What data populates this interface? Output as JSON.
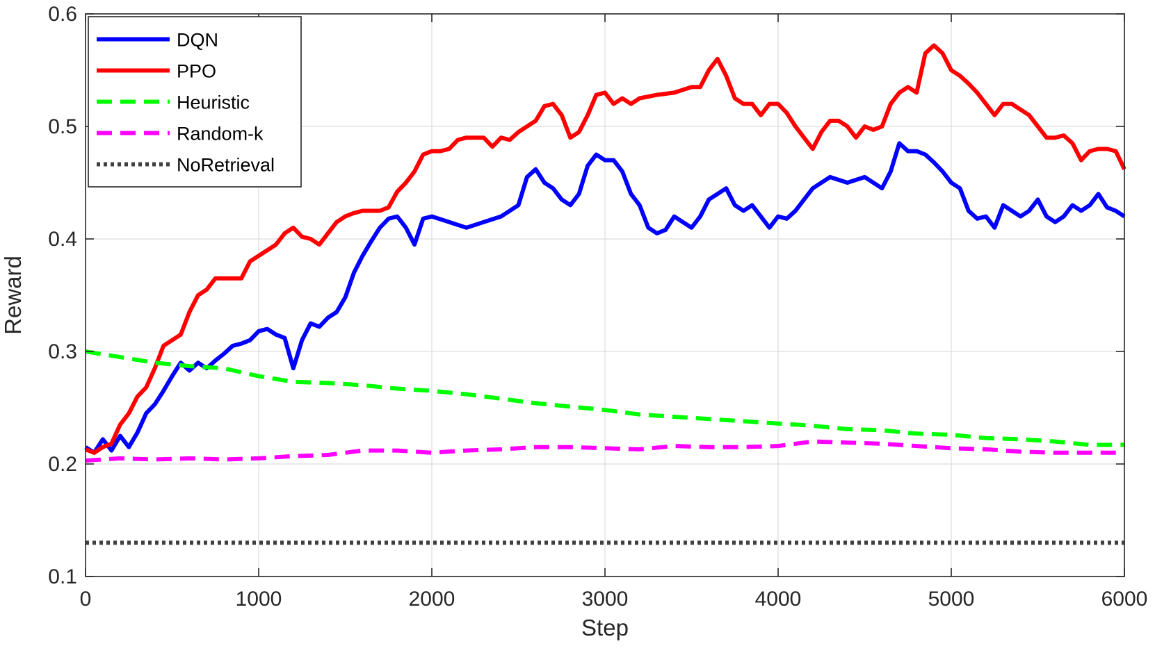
{
  "chart_data": {
    "type": "line",
    "title": "",
    "xlabel": "Step",
    "ylabel": "Reward",
    "xlim": [
      0,
      6000
    ],
    "ylim": [
      0.1,
      0.6
    ],
    "xticks": [
      0,
      1000,
      2000,
      3000,
      4000,
      5000,
      6000
    ],
    "yticks": [
      0.1,
      0.2,
      0.3,
      0.4,
      0.5,
      0.6
    ],
    "xtick_labels": [
      "0",
      "1000",
      "2000",
      "3000",
      "4000",
      "5000",
      "6000"
    ],
    "ytick_labels": [
      "0.1",
      "0.2",
      "0.3",
      "0.4",
      "0.5",
      "0.6"
    ],
    "grid": true,
    "legend_position": "top-left",
    "series": [
      {
        "name": "DQN",
        "color": "#0000ff",
        "style": "solid",
        "points": [
          [
            0,
            0.215
          ],
          [
            50,
            0.21
          ],
          [
            100,
            0.222
          ],
          [
            150,
            0.212
          ],
          [
            200,
            0.225
          ],
          [
            250,
            0.215
          ],
          [
            300,
            0.228
          ],
          [
            350,
            0.245
          ],
          [
            400,
            0.253
          ],
          [
            450,
            0.265
          ],
          [
            500,
            0.278
          ],
          [
            550,
            0.29
          ],
          [
            600,
            0.283
          ],
          [
            650,
            0.29
          ],
          [
            700,
            0.285
          ],
          [
            750,
            0.292
          ],
          [
            800,
            0.298
          ],
          [
            850,
            0.305
          ],
          [
            900,
            0.307
          ],
          [
            950,
            0.31
          ],
          [
            1000,
            0.318
          ],
          [
            1050,
            0.32
          ],
          [
            1100,
            0.315
          ],
          [
            1150,
            0.312
          ],
          [
            1200,
            0.285
          ],
          [
            1250,
            0.31
          ],
          [
            1300,
            0.325
          ],
          [
            1350,
            0.322
          ],
          [
            1400,
            0.33
          ],
          [
            1450,
            0.335
          ],
          [
            1500,
            0.348
          ],
          [
            1550,
            0.37
          ],
          [
            1600,
            0.385
          ],
          [
            1650,
            0.398
          ],
          [
            1700,
            0.41
          ],
          [
            1750,
            0.418
          ],
          [
            1800,
            0.42
          ],
          [
            1850,
            0.41
          ],
          [
            1900,
            0.395
          ],
          [
            1950,
            0.418
          ],
          [
            2000,
            0.42
          ],
          [
            2100,
            0.415
          ],
          [
            2200,
            0.41
          ],
          [
            2300,
            0.415
          ],
          [
            2400,
            0.42
          ],
          [
            2500,
            0.43
          ],
          [
            2550,
            0.455
          ],
          [
            2600,
            0.462
          ],
          [
            2650,
            0.45
          ],
          [
            2700,
            0.445
          ],
          [
            2750,
            0.435
          ],
          [
            2800,
            0.43
          ],
          [
            2850,
            0.44
          ],
          [
            2900,
            0.465
          ],
          [
            2950,
            0.475
          ],
          [
            3000,
            0.47
          ],
          [
            3050,
            0.47
          ],
          [
            3100,
            0.46
          ],
          [
            3150,
            0.44
          ],
          [
            3200,
            0.43
          ],
          [
            3250,
            0.41
          ],
          [
            3300,
            0.405
          ],
          [
            3350,
            0.408
          ],
          [
            3400,
            0.42
          ],
          [
            3450,
            0.415
          ],
          [
            3500,
            0.41
          ],
          [
            3550,
            0.42
          ],
          [
            3600,
            0.435
          ],
          [
            3650,
            0.44
          ],
          [
            3700,
            0.445
          ],
          [
            3750,
            0.43
          ],
          [
            3800,
            0.425
          ],
          [
            3850,
            0.43
          ],
          [
            3900,
            0.42
          ],
          [
            3950,
            0.41
          ],
          [
            4000,
            0.42
          ],
          [
            4050,
            0.418
          ],
          [
            4100,
            0.425
          ],
          [
            4150,
            0.435
          ],
          [
            4200,
            0.445
          ],
          [
            4300,
            0.455
          ],
          [
            4400,
            0.45
          ],
          [
            4500,
            0.455
          ],
          [
            4600,
            0.445
          ],
          [
            4650,
            0.46
          ],
          [
            4700,
            0.485
          ],
          [
            4750,
            0.478
          ],
          [
            4800,
            0.478
          ],
          [
            4850,
            0.475
          ],
          [
            4900,
            0.468
          ],
          [
            4950,
            0.46
          ],
          [
            5000,
            0.45
          ],
          [
            5050,
            0.445
          ],
          [
            5100,
            0.425
          ],
          [
            5150,
            0.418
          ],
          [
            5200,
            0.42
          ],
          [
            5250,
            0.41
          ],
          [
            5300,
            0.43
          ],
          [
            5350,
            0.425
          ],
          [
            5400,
            0.42
          ],
          [
            5450,
            0.425
          ],
          [
            5500,
            0.435
          ],
          [
            5550,
            0.42
          ],
          [
            5600,
            0.415
          ],
          [
            5650,
            0.42
          ],
          [
            5700,
            0.43
          ],
          [
            5750,
            0.425
          ],
          [
            5800,
            0.43
          ],
          [
            5850,
            0.44
          ],
          [
            5900,
            0.428
          ],
          [
            5950,
            0.425
          ],
          [
            6000,
            0.42
          ]
        ]
      },
      {
        "name": "PPO",
        "color": "#ff0000",
        "style": "solid",
        "points": [
          [
            0,
            0.213
          ],
          [
            50,
            0.21
          ],
          [
            100,
            0.215
          ],
          [
            150,
            0.218
          ],
          [
            200,
            0.235
          ],
          [
            250,
            0.245
          ],
          [
            300,
            0.26
          ],
          [
            350,
            0.268
          ],
          [
            400,
            0.285
          ],
          [
            450,
            0.305
          ],
          [
            500,
            0.31
          ],
          [
            550,
            0.315
          ],
          [
            600,
            0.335
          ],
          [
            650,
            0.35
          ],
          [
            700,
            0.355
          ],
          [
            750,
            0.365
          ],
          [
            800,
            0.365
          ],
          [
            850,
            0.365
          ],
          [
            900,
            0.365
          ],
          [
            950,
            0.38
          ],
          [
            1000,
            0.385
          ],
          [
            1050,
            0.39
          ],
          [
            1100,
            0.395
          ],
          [
            1150,
            0.405
          ],
          [
            1200,
            0.41
          ],
          [
            1250,
            0.402
          ],
          [
            1300,
            0.4
          ],
          [
            1350,
            0.395
          ],
          [
            1400,
            0.405
          ],
          [
            1450,
            0.415
          ],
          [
            1500,
            0.42
          ],
          [
            1550,
            0.423
          ],
          [
            1600,
            0.425
          ],
          [
            1650,
            0.425
          ],
          [
            1700,
            0.425
          ],
          [
            1750,
            0.428
          ],
          [
            1800,
            0.442
          ],
          [
            1850,
            0.45
          ],
          [
            1900,
            0.46
          ],
          [
            1950,
            0.475
          ],
          [
            2000,
            0.478
          ],
          [
            2050,
            0.478
          ],
          [
            2100,
            0.48
          ],
          [
            2150,
            0.488
          ],
          [
            2200,
            0.49
          ],
          [
            2300,
            0.49
          ],
          [
            2350,
            0.482
          ],
          [
            2400,
            0.49
          ],
          [
            2450,
            0.488
          ],
          [
            2500,
            0.495
          ],
          [
            2550,
            0.5
          ],
          [
            2600,
            0.505
          ],
          [
            2650,
            0.518
          ],
          [
            2700,
            0.52
          ],
          [
            2750,
            0.51
          ],
          [
            2800,
            0.49
          ],
          [
            2850,
            0.495
          ],
          [
            2900,
            0.51
          ],
          [
            2950,
            0.528
          ],
          [
            3000,
            0.53
          ],
          [
            3050,
            0.52
          ],
          [
            3100,
            0.525
          ],
          [
            3150,
            0.52
          ],
          [
            3200,
            0.525
          ],
          [
            3300,
            0.528
          ],
          [
            3400,
            0.53
          ],
          [
            3500,
            0.535
          ],
          [
            3550,
            0.535
          ],
          [
            3600,
            0.55
          ],
          [
            3650,
            0.56
          ],
          [
            3700,
            0.545
          ],
          [
            3750,
            0.525
          ],
          [
            3800,
            0.52
          ],
          [
            3850,
            0.52
          ],
          [
            3900,
            0.51
          ],
          [
            3950,
            0.52
          ],
          [
            4000,
            0.52
          ],
          [
            4050,
            0.512
          ],
          [
            4100,
            0.5
          ],
          [
            4150,
            0.49
          ],
          [
            4200,
            0.48
          ],
          [
            4250,
            0.495
          ],
          [
            4300,
            0.505
          ],
          [
            4350,
            0.505
          ],
          [
            4400,
            0.5
          ],
          [
            4450,
            0.49
          ],
          [
            4500,
            0.5
          ],
          [
            4550,
            0.497
          ],
          [
            4600,
            0.5
          ],
          [
            4650,
            0.52
          ],
          [
            4700,
            0.53
          ],
          [
            4750,
            0.535
          ],
          [
            4800,
            0.53
          ],
          [
            4850,
            0.565
          ],
          [
            4900,
            0.572
          ],
          [
            4950,
            0.565
          ],
          [
            5000,
            0.55
          ],
          [
            5050,
            0.545
          ],
          [
            5100,
            0.538
          ],
          [
            5150,
            0.53
          ],
          [
            5200,
            0.52
          ],
          [
            5250,
            0.51
          ],
          [
            5300,
            0.52
          ],
          [
            5350,
            0.52
          ],
          [
            5400,
            0.515
          ],
          [
            5450,
            0.51
          ],
          [
            5500,
            0.5
          ],
          [
            5550,
            0.49
          ],
          [
            5600,
            0.49
          ],
          [
            5650,
            0.492
          ],
          [
            5700,
            0.485
          ],
          [
            5750,
            0.47
          ],
          [
            5800,
            0.478
          ],
          [
            5850,
            0.48
          ],
          [
            5900,
            0.48
          ],
          [
            5950,
            0.478
          ],
          [
            6000,
            0.462
          ]
        ]
      },
      {
        "name": "Heuristic",
        "color": "#00ff00",
        "style": "dashed",
        "points": [
          [
            0,
            0.3
          ],
          [
            200,
            0.295
          ],
          [
            400,
            0.29
          ],
          [
            600,
            0.287
          ],
          [
            800,
            0.285
          ],
          [
            1000,
            0.278
          ],
          [
            1200,
            0.273
          ],
          [
            1400,
            0.272
          ],
          [
            1600,
            0.27
          ],
          [
            1800,
            0.267
          ],
          [
            2000,
            0.265
          ],
          [
            2200,
            0.262
          ],
          [
            2400,
            0.258
          ],
          [
            2600,
            0.254
          ],
          [
            2800,
            0.251
          ],
          [
            3000,
            0.248
          ],
          [
            3200,
            0.244
          ],
          [
            3400,
            0.242
          ],
          [
            3600,
            0.24
          ],
          [
            3800,
            0.238
          ],
          [
            4000,
            0.236
          ],
          [
            4200,
            0.234
          ],
          [
            4400,
            0.231
          ],
          [
            4600,
            0.23
          ],
          [
            4800,
            0.227
          ],
          [
            5000,
            0.226
          ],
          [
            5200,
            0.223
          ],
          [
            5400,
            0.222
          ],
          [
            5600,
            0.22
          ],
          [
            5800,
            0.217
          ],
          [
            6000,
            0.217
          ]
        ]
      },
      {
        "name": "Random-k",
        "color": "#ff00ff",
        "style": "dashed",
        "points": [
          [
            0,
            0.203
          ],
          [
            200,
            0.205
          ],
          [
            400,
            0.204
          ],
          [
            600,
            0.205
          ],
          [
            800,
            0.204
          ],
          [
            1000,
            0.205
          ],
          [
            1200,
            0.207
          ],
          [
            1400,
            0.208
          ],
          [
            1600,
            0.212
          ],
          [
            1800,
            0.212
          ],
          [
            2000,
            0.21
          ],
          [
            2200,
            0.212
          ],
          [
            2400,
            0.213
          ],
          [
            2600,
            0.215
          ],
          [
            2800,
            0.215
          ],
          [
            3000,
            0.214
          ],
          [
            3200,
            0.213
          ],
          [
            3400,
            0.216
          ],
          [
            3600,
            0.215
          ],
          [
            3800,
            0.215
          ],
          [
            4000,
            0.216
          ],
          [
            4200,
            0.22
          ],
          [
            4400,
            0.219
          ],
          [
            4600,
            0.218
          ],
          [
            4800,
            0.216
          ],
          [
            5000,
            0.214
          ],
          [
            5200,
            0.213
          ],
          [
            5400,
            0.211
          ],
          [
            5600,
            0.21
          ],
          [
            5800,
            0.21
          ],
          [
            6000,
            0.21
          ]
        ]
      },
      {
        "name": "NoRetrieval",
        "color": "#404040",
        "style": "dotted",
        "points": [
          [
            0,
            0.13
          ],
          [
            6000,
            0.13
          ]
        ]
      }
    ]
  }
}
